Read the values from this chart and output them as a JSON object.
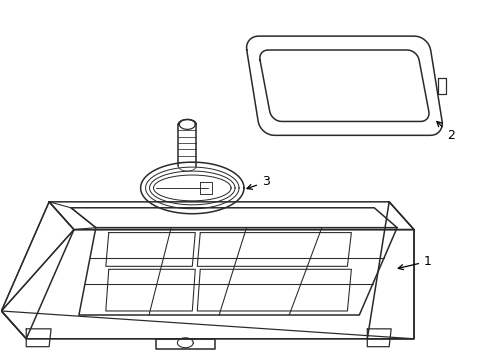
{
  "background_color": "#ffffff",
  "line_color": "#2a2a2a",
  "line_width": 1.1,
  "label_color": "#000000",
  "label_fontsize": 9,
  "figsize": [
    4.89,
    3.6
  ],
  "dpi": 100
}
